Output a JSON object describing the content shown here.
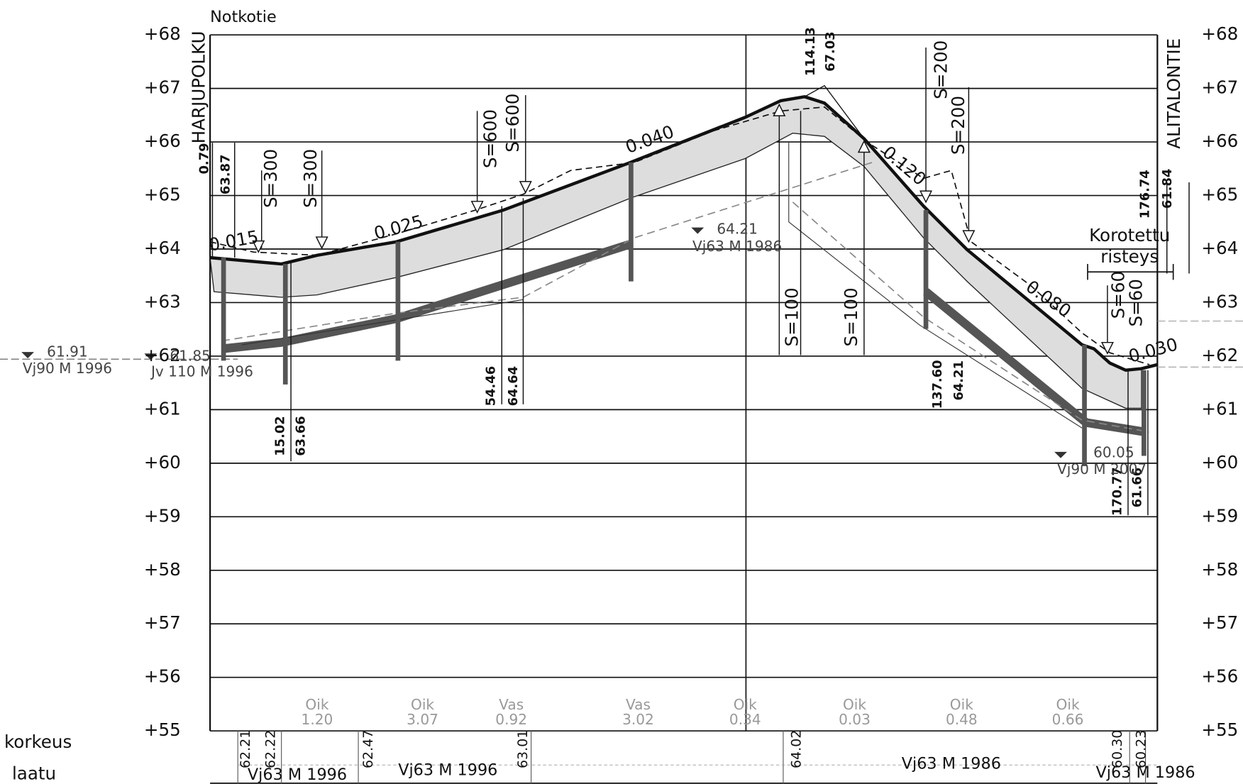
{
  "title": "Notkotie",
  "left_scale": [
    "+68",
    "+67",
    "+66",
    "+65",
    "+64",
    "+63",
    "+62",
    "+61",
    "+60",
    "+59",
    "+58",
    "+57",
    "+56",
    "+55"
  ],
  "right_scale": [
    "+68",
    "+67",
    "+66",
    "+65",
    "+64",
    "+63",
    "+62",
    "+61",
    "+60",
    "+59",
    "+58",
    "+57",
    "+56",
    "+55"
  ],
  "road_start": "HARJUPOLKU",
  "road_end": "ALITALONTIE",
  "profile_labels": [
    "0.79",
    "63.87",
    "0.015",
    "S=300",
    "S=300",
    "0.025",
    "S=600",
    "S=600",
    "0.040",
    "54.46",
    "64.64",
    "15.02",
    "63.66",
    "114.13",
    "67.03",
    "0.120",
    "S=100",
    "S=100",
    "S=200",
    "S=200",
    "0.080",
    "137.60",
    "64.21",
    "176.74",
    "61.84",
    "Korotettu",
    "risteys",
    "S=60",
    "S=60",
    "0.030",
    "170.77",
    "61.66"
  ],
  "benchmarks": [
    {
      "elev": "64.21",
      "desc": "Vj63 M 1986"
    },
    {
      "elev": "61.91",
      "desc": "Vj90 M 1996"
    },
    {
      "elev": "61.85",
      "desc": "Jv 110 M 1996"
    },
    {
      "elev": "60.05",
      "desc": "Vj90 M 2007"
    }
  ],
  "crossfall": [
    {
      "side": "Oik",
      "value": "1.20"
    },
    {
      "side": "Oik",
      "value": "3.07"
    },
    {
      "side": "Vas",
      "value": "0.92"
    },
    {
      "side": "Vas",
      "value": "3.02"
    },
    {
      "side": "Oik",
      "value": "0.34"
    },
    {
      "side": "Oik",
      "value": "0.03"
    },
    {
      "side": "Oik",
      "value": "0.48"
    },
    {
      "side": "Oik",
      "value": "0.66"
    }
  ],
  "table": {
    "row_labels": [
      "korkeus",
      "laatu"
    ],
    "heights": [
      "62.21",
      "62.22",
      "62.47",
      "63.01",
      "64.02",
      "60.30",
      "60.23"
    ],
    "quality": [
      "Vj63 M 1996",
      "Vj63 M 1996",
      "Vj63 M 1986",
      "Vj63 M 1986"
    ]
  }
}
